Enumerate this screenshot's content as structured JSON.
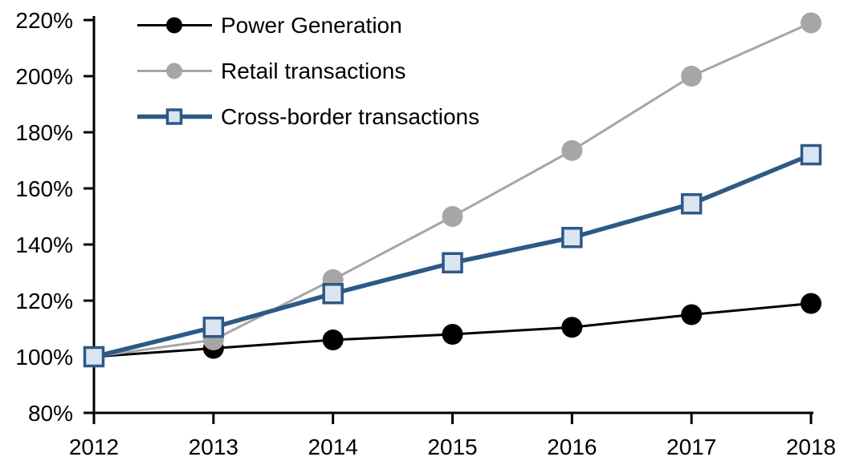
{
  "chart_data": {
    "type": "line",
    "title": "",
    "xlabel": "",
    "ylabel": "",
    "x": [
      "2012",
      "2013",
      "2014",
      "2015",
      "2016",
      "2017",
      "2018"
    ],
    "series": [
      {
        "name": "Power Generation",
        "color": "#000000",
        "marker": "circle",
        "marker_fill": "#000000",
        "line_width": 3,
        "values": [
          100,
          103,
          106,
          108,
          110.5,
          115,
          119
        ]
      },
      {
        "name": "Retail transactions",
        "color": "#a6a6a6",
        "marker": "circle",
        "marker_fill": "#a6a6a6",
        "line_width": 3,
        "values": [
          100,
          106,
          127.5,
          150,
          173.5,
          200,
          219
        ]
      },
      {
        "name": "Cross-border transactions",
        "color": "#2d5986",
        "marker": "square",
        "marker_fill": "#dbe5f1",
        "line_width": 5.5,
        "values": [
          100,
          110.5,
          122.5,
          133.5,
          142.5,
          154.5,
          172
        ]
      }
    ],
    "ylim": [
      80,
      220
    ],
    "yticks": [
      80,
      100,
      120,
      140,
      160,
      180,
      200,
      220
    ],
    "ytick_suffix": "%",
    "grid": false,
    "legend_position": "top-left",
    "axis_color": "#000000"
  }
}
